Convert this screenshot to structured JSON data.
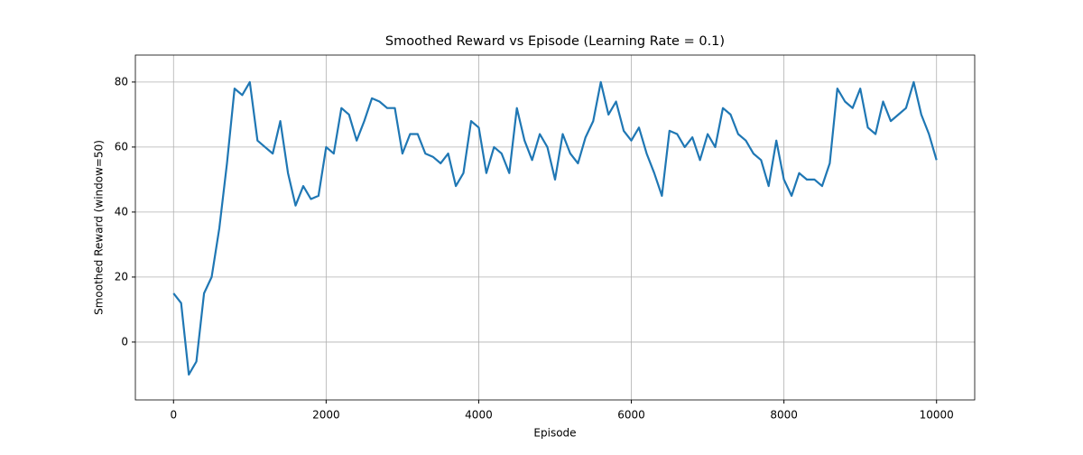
{
  "chart_data": {
    "type": "line",
    "title": "Smoothed Reward vs Episode (Learning Rate = 0.1)",
    "x_label": "Episode",
    "y_label": "Smoothed Reward (window=50)",
    "x": [
      0,
      100,
      200,
      300,
      400,
      500,
      600,
      700,
      800,
      900,
      1000,
      1100,
      1200,
      1300,
      1400,
      1500,
      1600,
      1700,
      1800,
      1900,
      2000,
      2100,
      2200,
      2300,
      2400,
      2500,
      2600,
      2700,
      2800,
      2900,
      3000,
      3100,
      3200,
      3300,
      3400,
      3500,
      3600,
      3700,
      3800,
      3900,
      4000,
      4100,
      4200,
      4300,
      4400,
      4500,
      4600,
      4700,
      4800,
      4900,
      5000,
      5100,
      5200,
      5300,
      5400,
      5500,
      5600,
      5700,
      5800,
      5900,
      6000,
      6100,
      6200,
      6300,
      6400,
      6500,
      6600,
      6700,
      6800,
      6900,
      7000,
      7100,
      7200,
      7300,
      7400,
      7500,
      7600,
      7700,
      7800,
      7900,
      8000,
      8100,
      8200,
      8300,
      8400,
      8500,
      8600,
      8700,
      8800,
      8900,
      9000,
      9100,
      9200,
      9300,
      9400,
      9500,
      9600,
      9700,
      9800,
      9900,
      10000
    ],
    "series": [
      {
        "name": "Smoothed Reward",
        "color": "#1f77b4",
        "values": [
          15,
          12,
          -10,
          -6,
          15,
          20,
          35,
          55,
          78,
          76,
          80,
          62,
          60,
          58,
          68,
          52,
          42,
          48,
          44,
          45,
          60,
          58,
          72,
          70,
          62,
          68,
          75,
          74,
          72,
          72,
          58,
          64,
          64,
          58,
          57,
          55,
          58,
          48,
          52,
          68,
          66,
          52,
          60,
          58,
          52,
          72,
          62,
          56,
          64,
          60,
          50,
          64,
          58,
          55,
          63,
          68,
          80,
          70,
          74,
          65,
          62,
          66,
          58,
          52,
          45,
          65,
          64,
          60,
          63,
          56,
          64,
          60,
          72,
          70,
          64,
          62,
          58,
          56,
          48,
          62,
          50,
          45,
          52,
          50,
          50,
          48,
          55,
          78,
          74,
          72,
          78,
          66,
          64,
          74,
          68,
          70,
          72,
          80,
          70,
          64,
          56
        ]
      }
    ],
    "xlim": [
      -500,
      10500
    ],
    "xticks": [
      0,
      2000,
      4000,
      6000,
      8000,
      10000
    ],
    "ylim": [
      -17.8,
      88.3
    ],
    "yticks": [
      0,
      20,
      40,
      60,
      80
    ],
    "grid": true
  }
}
